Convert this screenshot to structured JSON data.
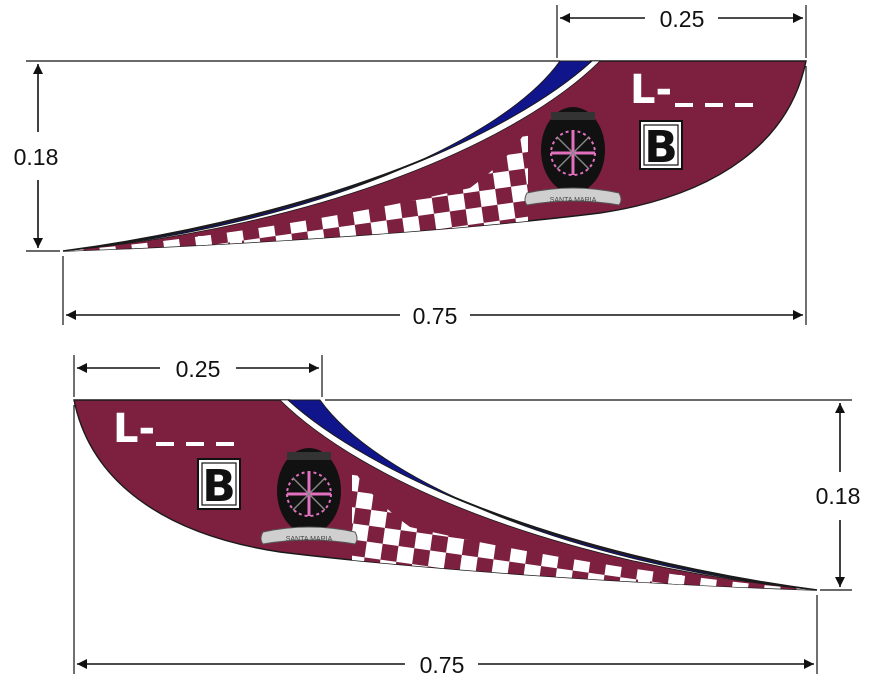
{
  "dimensions": {
    "top_tip_width": "0.25",
    "top_height": "0.18",
    "top_length": "0.75",
    "bottom_tip_width": "0.25",
    "bottom_height": "0.18",
    "bottom_length": "0.75"
  },
  "decal": {
    "code_prefix": "L-",
    "badge_letter": "B",
    "crest_banner": "SANTA MARIA"
  },
  "colors": {
    "body": "#7d1f3f",
    "stripe": "#11158c",
    "check_light": "#ffffff",
    "outline": "#1a1a1a",
    "crest_pink": "#e36fbf"
  }
}
